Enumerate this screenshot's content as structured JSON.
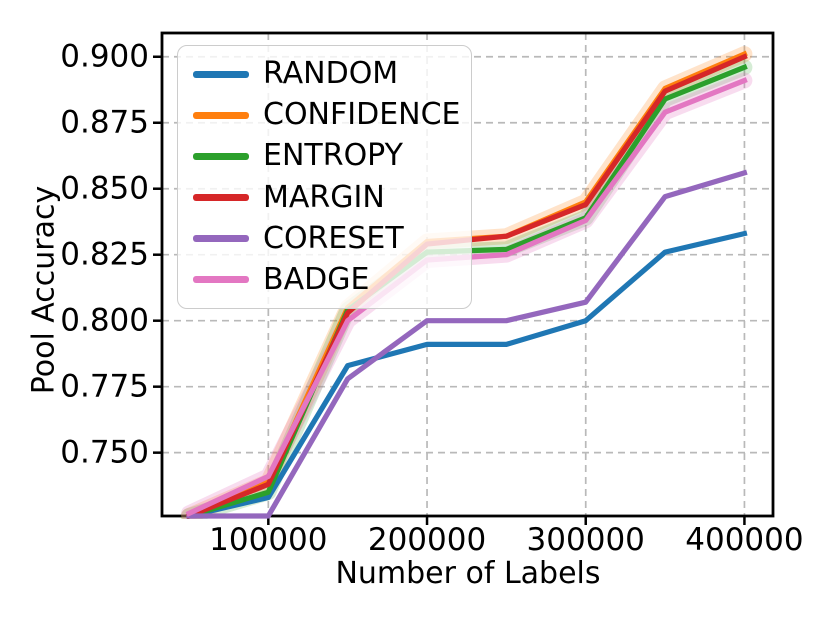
{
  "figure": {
    "background": "#ffffff",
    "spine_color": "#000000",
    "grid_color": "#b9b9b9",
    "text_color": "#000000",
    "legend_border_color": "#cccccc"
  },
  "chart_data": {
    "type": "line",
    "title": "",
    "xlabel": "Number of Labels",
    "ylabel": "Pool Accuracy",
    "grid": true,
    "legend_position": "upper left",
    "xlim": [
      33000,
      418000
    ],
    "ylim": [
      0.726,
      0.909
    ],
    "xticks": [
      100000,
      200000,
      300000,
      400000
    ],
    "xtick_labels": [
      "100000",
      "200000",
      "300000",
      "400000"
    ],
    "yticks": [
      0.75,
      0.775,
      0.8,
      0.825,
      0.85,
      0.875,
      0.9
    ],
    "ytick_labels": [
      "0.750",
      "0.775",
      "0.800",
      "0.825",
      "0.850",
      "0.875",
      "0.900"
    ],
    "x": [
      50000,
      100000,
      150000,
      200000,
      250000,
      300000,
      350000,
      400000
    ],
    "series": [
      {
        "name": "RANDOM",
        "color": "#1f77b4",
        "band_opacity": 0,
        "values": [
          0.726,
          0.733,
          0.783,
          0.791,
          0.791,
          0.8,
          0.826,
          0.833
        ]
      },
      {
        "name": "CONFIDENCE",
        "color": "#ff7f0e",
        "band_opacity": 0.22,
        "values": [
          0.726,
          0.739,
          0.805,
          0.83,
          0.832,
          0.845,
          0.888,
          0.901
        ]
      },
      {
        "name": "ENTROPY",
        "color": "#2ca02c",
        "band_opacity": 0.2,
        "values": [
          0.726,
          0.735,
          0.804,
          0.826,
          0.827,
          0.839,
          0.884,
          0.896
        ]
      },
      {
        "name": "MARGIN",
        "color": "#d62728",
        "band_opacity": 0,
        "values": [
          0.726,
          0.738,
          0.803,
          0.829,
          0.832,
          0.844,
          0.887,
          0.9
        ]
      },
      {
        "name": "CORESET",
        "color": "#9467bd",
        "band_opacity": 0,
        "values": [
          0.726,
          0.726,
          0.778,
          0.8,
          0.8,
          0.807,
          0.847,
          0.856
        ]
      },
      {
        "name": "BADGE",
        "color": "#e377c2",
        "band_opacity": 0.26,
        "values": [
          0.727,
          0.741,
          0.8,
          0.823,
          0.825,
          0.838,
          0.879,
          0.891
        ]
      }
    ]
  }
}
